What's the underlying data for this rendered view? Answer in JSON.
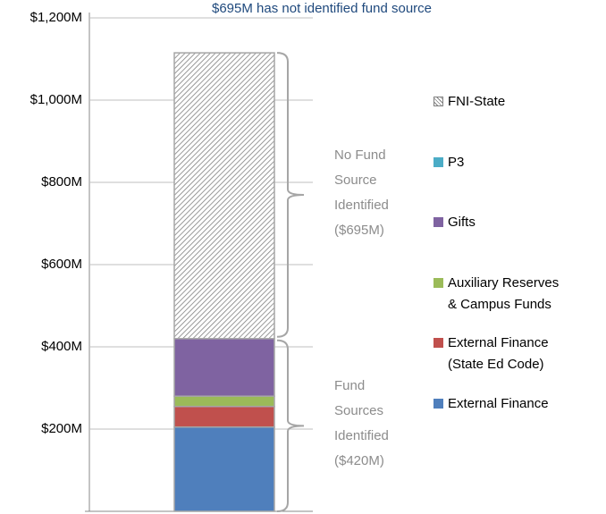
{
  "chart_data": {
    "type": "stacked_bar",
    "title": "$695M has not identified fund source",
    "categories": [
      null
    ],
    "series": [
      {
        "name": "External Finance",
        "color": "#4f7fbc",
        "values": [
          205
        ]
      },
      {
        "name": "External Finance\n(State Ed Code)",
        "color": "#c0504d",
        "values": [
          50
        ]
      },
      {
        "name": "Auxiliary Reserves\n& Campus Funds",
        "color": "#9bbb59",
        "values": [
          25
        ]
      },
      {
        "name": "Gifts",
        "color": "#7f63a1",
        "values": [
          140
        ]
      },
      {
        "name": "P3",
        "color": "#4bacc6",
        "values": [
          0
        ]
      },
      {
        "name": "FNI-State",
        "color": "#808080",
        "hatch": true,
        "values": [
          695
        ]
      }
    ],
    "annotations": [
      {
        "text": "No Fund\nSource\nIdentified\n($695M)"
      },
      {
        "text": "Fund\nSources\nIdentified\n($420M)"
      }
    ],
    "ylim": [
      0,
      1200
    ],
    "yticks": [
      {
        "value": 200,
        "label": "$200M"
      },
      {
        "value": 400,
        "label": "$400M"
      },
      {
        "value": 600,
        "label": "$600M"
      },
      {
        "value": 800,
        "label": "$800M"
      },
      {
        "value": 1000,
        "label": "$1,000M"
      },
      {
        "value": 1200,
        "label": "$1,200M"
      }
    ],
    "grid": true
  }
}
